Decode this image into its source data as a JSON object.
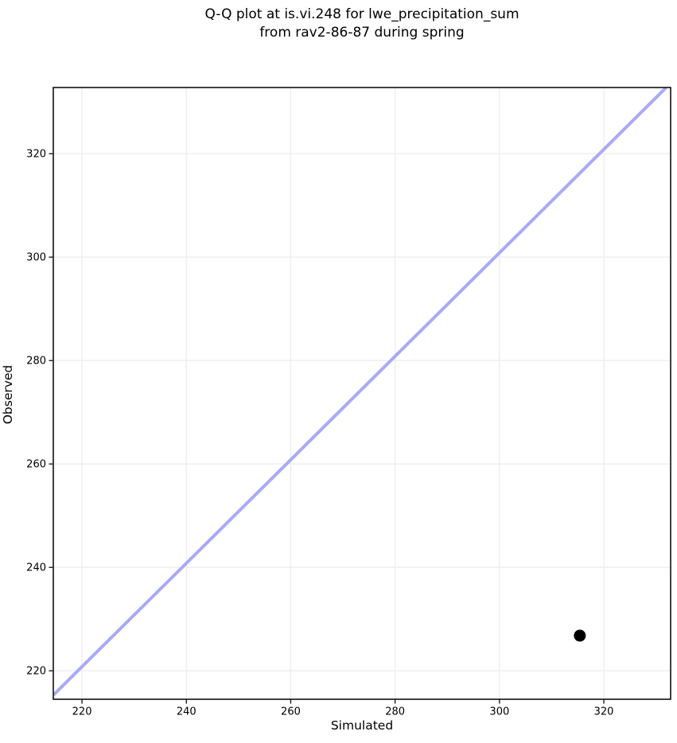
{
  "chart_data": {
    "type": "scatter",
    "title": "Q-Q plot at is.vi.248 for lwe_precipitation_sum\nfrom rav2-86-87 during spring",
    "title_lines": [
      "Q-Q plot at is.vi.248 for lwe_precipitation_sum",
      "from rav2-86-87 during spring"
    ],
    "xlabel": "Simulated",
    "ylabel": "Observed",
    "xlim": [
      214.5,
      332.8
    ],
    "ylim": [
      214.5,
      332.8
    ],
    "xticks": [
      220,
      240,
      260,
      280,
      300,
      320
    ],
    "yticks": [
      220,
      240,
      260,
      280,
      300,
      320
    ],
    "grid": true,
    "legend_position": "none",
    "series": [
      {
        "name": "identity-line",
        "type": "line",
        "color": "#a9aaf5",
        "line_width": 4,
        "x": [
          214.5,
          331.95
        ],
        "y": [
          215.3,
          332.8
        ]
      },
      {
        "name": "quantile-points",
        "type": "scatter",
        "color": "#000000",
        "marker": "circle",
        "marker_radius": 7.5,
        "points": [
          {
            "x": 315.4,
            "y": 226.8
          }
        ]
      }
    ],
    "colors": {
      "background": "#ffffff",
      "grid": "#efefef",
      "spine": "#000000",
      "text": "#000000"
    }
  }
}
